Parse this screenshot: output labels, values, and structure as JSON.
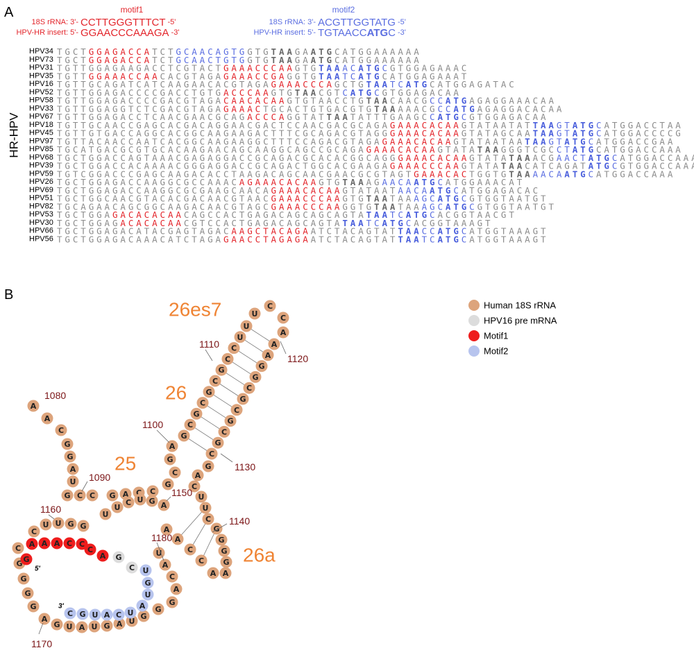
{
  "panel_a": {
    "label": "A",
    "motif1": {
      "title": "motif1",
      "lines": [
        {
          "lead": "18S rRNA: 3'-",
          "seq": [
            [
              "CCTTGGGTTTCT",
              "plain"
            ]
          ],
          "end": "-5'"
        },
        {
          "lead": "HPV-HR insert: 5'-",
          "seq": [
            [
              "GGAACCCAAAGA",
              "plain"
            ]
          ],
          "end": "-3'"
        }
      ]
    },
    "motif2": {
      "title": "motif2",
      "lines": [
        {
          "lead": "18S rRNA: 3'-",
          "seq": [
            [
              "ACGTTGGTATG",
              "plain"
            ]
          ],
          "end": "-5'"
        },
        {
          "lead": "HPV-HR insert: 5'-",
          "seq": [
            [
              "TGTAACC",
              "plain"
            ],
            [
              "ATG",
              "bold"
            ],
            [
              "C",
              "plain"
            ]
          ],
          "end": "-3'"
        }
      ]
    },
    "side_label": "HR-HPV",
    "rows": [
      {
        "name": "HPV34",
        "segments": [
          [
            "TGCT",
            "gray"
          ],
          [
            "GGAGACCA",
            "red"
          ],
          [
            "TCT",
            "gray"
          ],
          [
            "GCAACAGTG",
            "blue"
          ],
          [
            "GTG",
            "gray"
          ],
          [
            "TAA",
            "gray-bold"
          ],
          [
            "GA",
            "gray"
          ],
          [
            "ATG",
            "gray-bold"
          ],
          [
            "CATGGAAAAAA",
            "gray"
          ]
        ]
      },
      {
        "name": "HPV73",
        "segments": [
          [
            "TGCT",
            "gray"
          ],
          [
            "GGAGACCA",
            "red"
          ],
          [
            "TCT",
            "gray"
          ],
          [
            "GCAACTGTG",
            "blue"
          ],
          [
            "GTG",
            "gray"
          ],
          [
            "TAA",
            "gray-bold"
          ],
          [
            "GA",
            "gray"
          ],
          [
            "ATG",
            "gray-bold"
          ],
          [
            "CATGGAAAAAA",
            "gray"
          ]
        ]
      },
      {
        "name": "HPV31",
        "segments": [
          [
            "TGTTGGAGAAGACCTCGTACT",
            "gray"
          ],
          [
            "GAAACCCAA",
            "red"
          ],
          [
            "GTG",
            "gray"
          ],
          [
            "TAA",
            "blue-bold"
          ],
          [
            "AC",
            "blue"
          ],
          [
            "ATG",
            "blue-bold"
          ],
          [
            "C",
            "blue"
          ],
          [
            "GTGGAGAAAC",
            "gray"
          ]
        ]
      },
      {
        "name": "HPV35",
        "segments": [
          [
            "TGTT",
            "gray"
          ],
          [
            "GGAAACCAA",
            "red"
          ],
          [
            "CACGTAGA",
            "gray"
          ],
          [
            "GAAACCGA",
            "red"
          ],
          [
            "GGTG",
            "gray"
          ],
          [
            "TAA",
            "blue-bold"
          ],
          [
            "TC",
            "blue"
          ],
          [
            "ATG",
            "blue-bold"
          ],
          [
            "CATGGAGAAAT",
            "gray"
          ]
        ]
      },
      {
        "name": "HPV16",
        "segments": [
          [
            "TGTTGCAGATCATCAAGAACACGTAGA",
            "gray"
          ],
          [
            "GAAACCCA",
            "red"
          ],
          [
            "GCTG",
            "gray"
          ],
          [
            "TAA",
            "blue-bold"
          ],
          [
            "TC",
            "blue"
          ],
          [
            "ATG",
            "blue-bold"
          ],
          [
            "CATGGAGATAC",
            "gray"
          ]
        ]
      },
      {
        "name": "HPV52",
        "segments": [
          [
            "TGTTGGAGACCCCGACCTGTG",
            "gray"
          ],
          [
            "ACCCAA",
            "red"
          ],
          [
            "GTG",
            "gray"
          ],
          [
            "TAA",
            "gray-bold"
          ],
          [
            "CGT",
            "gray"
          ],
          [
            "C",
            "blue"
          ],
          [
            "ATG",
            "blue-bold"
          ],
          [
            "C",
            "blue"
          ],
          [
            "GTGGAGACAA",
            "gray"
          ]
        ]
      },
      {
        "name": "HPV58",
        "segments": [
          [
            "TGTTGGAGACCCCGACGTAGA",
            "gray"
          ],
          [
            "CAACACAA",
            "red"
          ],
          [
            "GTGTAACCTG",
            "gray"
          ],
          [
            "TAA",
            "gray-bold"
          ],
          [
            "CAACG",
            "gray"
          ],
          [
            "CC",
            "blue"
          ],
          [
            "ATG",
            "blue-bold"
          ],
          [
            "AGAGGAAACAA",
            "gray"
          ]
        ]
      },
      {
        "name": "HPV33",
        "segments": [
          [
            "TGTTGGAGGTCTCGACGTAGA",
            "gray"
          ],
          [
            "GAAAC",
            "red"
          ],
          [
            "TGCACTGTGACGTG",
            "gray"
          ],
          [
            "TAA",
            "gray-bold"
          ],
          [
            "AAACG",
            "gray"
          ],
          [
            "CC",
            "blue"
          ],
          [
            "ATG",
            "blue-bold"
          ],
          [
            "AGAGGACACAA",
            "gray"
          ]
        ]
      },
      {
        "name": "HPV67",
        "segments": [
          [
            "TGTTGGAGACCTCAACGAACGCAG",
            "gray"
          ],
          [
            "ACCCA",
            "red"
          ],
          [
            "GGTAT",
            "gray"
          ],
          [
            "TAA",
            "gray-bold"
          ],
          [
            "TATTTGAAGC",
            "gray"
          ],
          [
            "C",
            "blue"
          ],
          [
            "ATG",
            "blue-bold"
          ],
          [
            "C",
            "blue"
          ],
          [
            "GTGGAGACAA",
            "gray"
          ]
        ]
      },
      {
        "name": "HPV18",
        "segments": [
          [
            "TGTTGCAACCGAGCACGACAGGAACGACTCCAACGACGCAGA",
            "gray"
          ],
          [
            "GAAACACAA",
            "red"
          ],
          [
            "GTATAATAT",
            "gray"
          ],
          [
            "TAA",
            "blue-bold"
          ],
          [
            "GT",
            "blue"
          ],
          [
            "ATG",
            "blue-bold"
          ],
          [
            "C",
            "blue"
          ],
          [
            "ATGGACCTAA",
            "gray"
          ]
        ]
      },
      {
        "name": "HPV45",
        "segments": [
          [
            "TGTTGTGACCAGGCACGGCAAGAAGACTTTCGCAGACGTAGG",
            "gray"
          ],
          [
            "GAAACACAA",
            "red"
          ],
          [
            "GTATAGCAA",
            "gray"
          ],
          [
            "TAA",
            "blue-bold"
          ],
          [
            "GT",
            "blue"
          ],
          [
            "ATG",
            "blue-bold"
          ],
          [
            "C",
            "blue"
          ],
          [
            "ATGGACCCCG",
            "gray"
          ]
        ]
      },
      {
        "name": "HPV97",
        "segments": [
          [
            "TGTTACAACCAATCACGGCAAGAAGGCTTTCCAGACGTAGA",
            "gray"
          ],
          [
            "GAAACACAA",
            "red"
          ],
          [
            "GTATAATAA",
            "gray"
          ],
          [
            "TAA",
            "blue-bold"
          ],
          [
            "GT",
            "blue"
          ],
          [
            "ATG",
            "blue-bold"
          ],
          [
            "C",
            "blue"
          ],
          [
            "ATGGACCGAA",
            "gray"
          ]
        ]
      },
      {
        "name": "HPV85",
        "segments": [
          [
            "TGCATGACGCGTGCACAAGAACAGCAAGGCAGCCGCAGA",
            "gray"
          ],
          [
            "GAAACACAA",
            "red"
          ],
          [
            "GTATA",
            "gray"
          ],
          [
            "TAA",
            "gray-bold"
          ],
          [
            "GGGTCGC",
            "gray"
          ],
          [
            "CT",
            "blue"
          ],
          [
            "ATG",
            "blue-bold"
          ],
          [
            "CATGGACCAAA",
            "gray"
          ]
        ]
      },
      {
        "name": "HPV68",
        "segments": [
          [
            "TGCTGGACCAGTAAACGAGAGGACCGCAGACGCACACGGCAGG",
            "gray"
          ],
          [
            "GAAACACAA",
            "red"
          ],
          [
            "GTATA",
            "gray"
          ],
          [
            "TAA",
            "gray-bold"
          ],
          [
            "ACG",
            "gray"
          ],
          [
            "AACT",
            "blue"
          ],
          [
            "ATG",
            "blue-bold"
          ],
          [
            "C",
            "blue"
          ],
          [
            "ATGGACCAAA",
            "gray"
          ]
        ]
      },
      {
        "name": "HPV39",
        "segments": [
          [
            "TGCTGGACCACAAAACGGGAGGACCGCAGACTGGCACGAAGA",
            "gray"
          ],
          [
            "GAAACCCAA",
            "red"
          ],
          [
            "GTATA",
            "gray"
          ],
          [
            "TAA",
            "gray-bold"
          ],
          [
            "CATCAGAT",
            "gray"
          ],
          [
            "ATG",
            "blue-bold"
          ],
          [
            "C",
            "blue"
          ],
          [
            "GTGGACCAAA",
            "gray"
          ]
        ]
      },
      {
        "name": "HPV59",
        "segments": [
          [
            "TGTCGGACCCGAGCAAGACACCTAAGACAGCAACGAACGCGTAGT",
            "gray"
          ],
          [
            "GAAACAC",
            "red"
          ],
          [
            "TGGTG",
            "gray"
          ],
          [
            "TAA",
            "gray-bold"
          ],
          [
            "AACA",
            "blue"
          ],
          [
            "ATG",
            "blue-bold"
          ],
          [
            "C",
            "blue"
          ],
          [
            "ATGGACCAAA",
            "gray"
          ]
        ]
      },
      {
        "name": "HPV26",
        "segments": [
          [
            "TGCTGGAGACCAAGGCGCCAAAC",
            "gray"
          ],
          [
            "AGAAACACAA",
            "red"
          ],
          [
            "GTG",
            "gray"
          ],
          [
            "TAA",
            "gray-bold"
          ],
          [
            "AG",
            "gray"
          ],
          [
            "AACA",
            "blue"
          ],
          [
            "ATG",
            "blue-bold"
          ],
          [
            "C",
            "blue"
          ],
          [
            "ATGGAAACAT",
            "gray"
          ]
        ]
      },
      {
        "name": "HPV69",
        "segments": [
          [
            "TGCTGGAGACCAAGGCGCGAAGCAACA",
            "gray"
          ],
          [
            "GAAACACAA",
            "red"
          ],
          [
            "GTATAAT",
            "gray"
          ],
          [
            "AACA",
            "blue"
          ],
          [
            "ATG",
            "blue-bold"
          ],
          [
            "C",
            "blue"
          ],
          [
            "ATGGAGACAC",
            "gray"
          ]
        ]
      },
      {
        "name": "HPV51",
        "segments": [
          [
            "TGCTGGCAACGTACACGACAACGTAAC",
            "gray"
          ],
          [
            "GAAACCCAA",
            "red"
          ],
          [
            "GTG",
            "gray"
          ],
          [
            "TAA",
            "gray-bold"
          ],
          [
            "TAA",
            "gray"
          ],
          [
            "AGC",
            "blue"
          ],
          [
            "ATG",
            "blue-bold"
          ],
          [
            "C",
            "blue"
          ],
          [
            "GTGGTAATGT",
            "gray"
          ]
        ]
      },
      {
        "name": "HPV82",
        "segments": [
          [
            "TGCAGAACAGCGGCAAGACAACGTAGC",
            "gray"
          ],
          [
            "GAAACCCAA",
            "red"
          ],
          [
            "GGTG",
            "gray"
          ],
          [
            "TAA",
            "gray-bold"
          ],
          [
            "TAA",
            "gray"
          ],
          [
            "AGC",
            "blue"
          ],
          [
            "ATG",
            "blue-bold"
          ],
          [
            "C",
            "blue"
          ],
          [
            "GTGGTAATGT",
            "gray"
          ]
        ]
      },
      {
        "name": "HPV53",
        "segments": [
          [
            "TGCTGGA",
            "gray"
          ],
          [
            "GACACACAA",
            "red"
          ],
          [
            "CAGCCACTGAGACAGCAGCAGTA",
            "gray"
          ],
          [
            "TAA",
            "blue-bold"
          ],
          [
            "TC",
            "blue"
          ],
          [
            "ATG",
            "blue-bold"
          ],
          [
            "C",
            "blue"
          ],
          [
            "ACGGTAACGT",
            "gray"
          ]
        ]
      },
      {
        "name": "HPV30",
        "segments": [
          [
            "TGCTGGAG",
            "gray"
          ],
          [
            "ACACACAA",
            "red"
          ],
          [
            "CGTCCACTGAGACAGCAGTA",
            "gray"
          ],
          [
            "TAA",
            "blue-bold"
          ],
          [
            "TC",
            "blue"
          ],
          [
            "ATG",
            "blue-bold"
          ],
          [
            "C",
            "blue"
          ],
          [
            "ACGGTAAAGT",
            "gray"
          ]
        ]
      },
      {
        "name": "HPV66",
        "segments": [
          [
            "TGCTGGAGACATACGAGTAGAC",
            "gray"
          ],
          [
            "AAGCTACAGA",
            "red"
          ],
          [
            "ATCTACAGTAT",
            "gray"
          ],
          [
            "TAA",
            "blue-bold"
          ],
          [
            "CC",
            "blue"
          ],
          [
            "ATG",
            "blue-bold"
          ],
          [
            "C",
            "blue"
          ],
          [
            "ATGGTAAAGT",
            "gray"
          ]
        ]
      },
      {
        "name": "HPV56",
        "segments": [
          [
            "TGCTGGAGACAAACATCTAGA",
            "gray"
          ],
          [
            "GAACCTAGAGA",
            "red"
          ],
          [
            "ATCTACAGTAT",
            "gray"
          ],
          [
            "TAA",
            "blue-bold"
          ],
          [
            "TC",
            "blue"
          ],
          [
            "ATG",
            "blue-bold"
          ],
          [
            "C",
            "blue"
          ],
          [
            "ATGGTAAAGT",
            "gray"
          ]
        ]
      }
    ]
  },
  "panel_b": {
    "label": "B",
    "legend": [
      {
        "name": "Human 18S rRNA",
        "color": "#dda47c"
      },
      {
        "name": "HPV16 pre mRNA",
        "color": "#dcdcdc"
      },
      {
        "name": "Motif1",
        "color": "#ee1d1d"
      },
      {
        "name": "Motif2",
        "color": "#b7c4ee"
      }
    ],
    "regions": [
      "26es7",
      "26",
      "25",
      "26a"
    ],
    "positions": [
      1080,
      1090,
      1100,
      1110,
      1120,
      1130,
      1140,
      1150,
      1160,
      1170,
      1180
    ],
    "five_prime": "5'",
    "three_prime": "3'",
    "human": {
      "legend": 0,
      "bases": [
        "A",
        "A",
        "C",
        "G",
        "G",
        "A",
        "U",
        "G",
        "C",
        "C",
        "G",
        "A",
        "C",
        "C",
        "G",
        "C",
        "G",
        "A",
        "G",
        "C",
        "G",
        "C",
        "G",
        "C",
        "G",
        "C",
        "C",
        "U",
        "U",
        "U",
        "C",
        "C",
        "A",
        "A",
        "A",
        "G",
        "G",
        "C",
        "G",
        "C",
        "G",
        "C",
        "G",
        "C",
        "G",
        "A",
        "C",
        "U",
        "U",
        "C",
        "G",
        "G",
        "G",
        "G",
        "A",
        "A",
        "C",
        "C",
        "A",
        "A",
        "A",
        "G",
        "U",
        "C",
        "U",
        "U",
        "G",
        "G",
        "U",
        "U",
        "C",
        "C",
        "G",
        "G",
        "G",
        "G",
        "A",
        "G",
        "U",
        "A",
        "U",
        "G",
        "A",
        "U",
        "G",
        "G",
        "G",
        "A",
        "C",
        "A",
        "U"
      ]
    },
    "hpv": [
      {
        "legend": 2,
        "bases": [
          "G",
          "A",
          "A",
          "A",
          "C",
          "C",
          "C",
          "A"
        ]
      },
      {
        "legend": 1,
        "bases": [
          "G",
          "C"
        ]
      },
      {
        "legend": 3,
        "bases": [
          "U",
          "G",
          "U",
          "A",
          "U",
          "C",
          "A",
          "U",
          "G",
          "C"
        ]
      }
    ]
  }
}
